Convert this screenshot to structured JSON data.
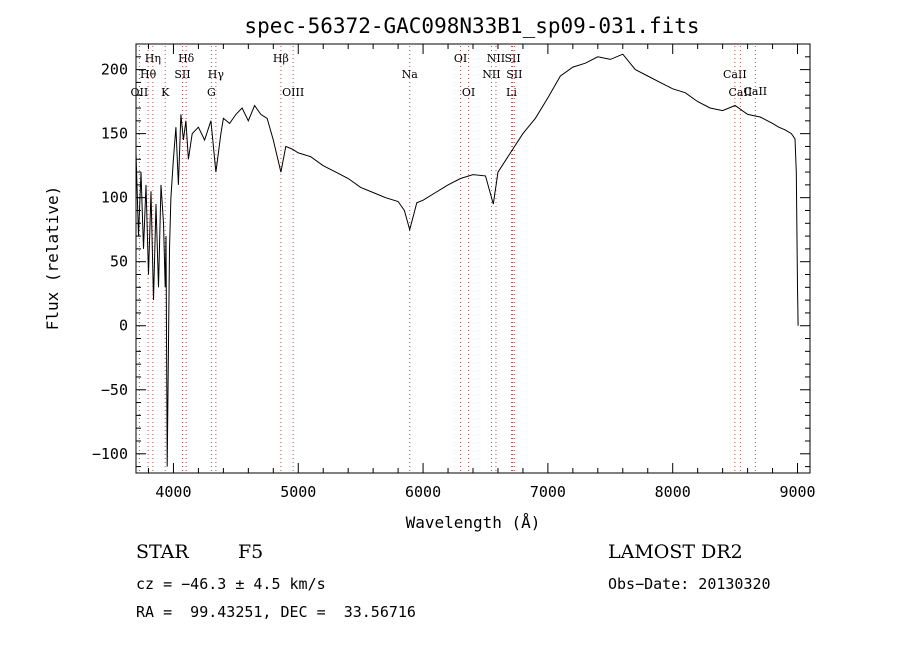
{
  "chart_data": {
    "type": "line",
    "title": "spec-56372-GAC098N33B1_sp09-031.fits",
    "xlabel": "Wavelength (Å)",
    "ylabel": "Flux (relative)",
    "xlim": [
      3700,
      9100
    ],
    "ylim": [
      -115,
      220
    ],
    "xticks": [
      4000,
      5000,
      6000,
      7000,
      8000,
      9000
    ],
    "yticks": [
      -100,
      -50,
      0,
      50,
      100,
      150,
      200
    ],
    "grid": false,
    "series": [
      {
        "x": [
          3700,
          3720,
          3740,
          3760,
          3780,
          3800,
          3820,
          3840,
          3860,
          3880,
          3900,
          3920,
          3934,
          3940,
          3950,
          3968,
          3980,
          4000,
          4020,
          4040,
          4060,
          4080,
          4100,
          4120,
          4150,
          4200,
          4250,
          4300,
          4340,
          4380,
          4400,
          4450,
          4500,
          4550,
          4600,
          4650,
          4700,
          4750,
          4800,
          4861,
          4900,
          4950,
          5000,
          5100,
          5200,
          5300,
          5400,
          5500,
          5600,
          5700,
          5800,
          5850,
          5893,
          5950,
          6000,
          6100,
          6200,
          6300,
          6400,
          6500,
          6563,
          6600,
          6700,
          6800,
          6900,
          7000,
          7100,
          7200,
          7300,
          7400,
          7500,
          7600,
          7700,
          7800,
          7900,
          8000,
          8100,
          8200,
          8300,
          8400,
          8500,
          8600,
          8700,
          8800,
          8850,
          8900,
          8950,
          8980,
          8990,
          9000,
          9005
        ],
        "y": [
          135,
          70,
          120,
          60,
          110,
          40,
          105,
          20,
          95,
          30,
          110,
          80,
          30,
          70,
          -110,
          60,
          100,
          130,
          155,
          110,
          165,
          145,
          160,
          130,
          150,
          155,
          145,
          160,
          120,
          150,
          162,
          158,
          165,
          170,
          160,
          172,
          165,
          162,
          145,
          120,
          140,
          138,
          135,
          132,
          125,
          120,
          115,
          108,
          104,
          100,
          97,
          90,
          75,
          96,
          98,
          104,
          110,
          115,
          118,
          117,
          95,
          120,
          135,
          150,
          162,
          178,
          195,
          202,
          205,
          210,
          208,
          212,
          200,
          195,
          190,
          185,
          182,
          175,
          170,
          168,
          172,
          165,
          163,
          158,
          155,
          153,
          150,
          146,
          120,
          30,
          0
        ]
      }
    ],
    "lines": [
      {
        "name": "OII",
        "x": 3727,
        "row": 3
      },
      {
        "name": "Hθ",
        "x": 3797,
        "row": 2
      },
      {
        "name": "Hη",
        "x": 3835,
        "row": 1
      },
      {
        "name": "K",
        "x": 3934,
        "row": 3
      },
      {
        "name": "SII",
        "x": 4072,
        "row": 2
      },
      {
        "name": "Hδ",
        "x": 4102,
        "row": 1
      },
      {
        "name": "G",
        "x": 4304,
        "row": 3
      },
      {
        "name": "Hγ",
        "x": 4340,
        "row": 2
      },
      {
        "name": "Hβ",
        "x": 4861,
        "row": 1
      },
      {
        "name": "OIII",
        "x": 4959,
        "row": 3
      },
      {
        "name": "Na",
        "x": 5893,
        "row": 2
      },
      {
        "name": "OI",
        "x": 6300,
        "row": 1
      },
      {
        "name": "OI",
        "x": 6364,
        "row": 3
      },
      {
        "name": "NII",
        "x": 6548,
        "row": 2
      },
      {
        "name": "NII",
        "x": 6584,
        "row": 1
      },
      {
        "name": "Li",
        "x": 6708,
        "row": 3
      },
      {
        "name": "SII",
        "x": 6717,
        "row": 1
      },
      {
        "name": "SII",
        "x": 6731,
        "row": 2
      },
      {
        "name": "CaII",
        "x": 8498,
        "row": 2
      },
      {
        "name": "CaII",
        "x": 8542,
        "row": 3
      },
      {
        "name": "CaII",
        "x": 8662,
        "row": 0
      }
    ]
  },
  "info": {
    "class": "STAR",
    "subclass": "F5",
    "survey": "LAMOST DR2",
    "cz": "cz = −46.3 ± 4.5 km/s",
    "obs_date": "Obs−Date: 20130320",
    "coords": "RA =  99.43251, DEC =  33.56716"
  }
}
